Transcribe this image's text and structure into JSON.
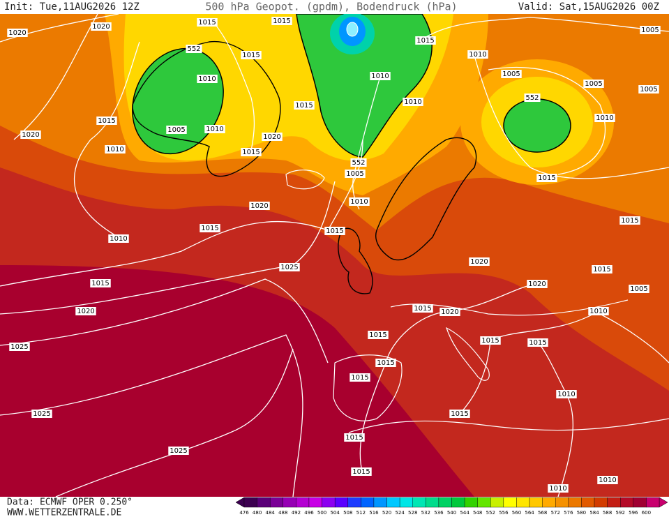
{
  "header": {
    "init": "Init: Tue,11AUG2026 12Z",
    "title": "500 hPa Geopot. (gpdm), Bodendruck (hPa)",
    "valid": "Valid: Sat,15AUG2026 00Z"
  },
  "map": {
    "isobar_labels": [
      "1020",
      "1020",
      "1015",
      "1015",
      "1015",
      "1010",
      "1005",
      "552",
      "1010",
      "1015",
      "1010",
      "1005",
      "1005",
      "1005",
      "1015",
      "1005",
      "1010",
      "1020",
      "1010",
      "1020",
      "1015",
      "1010",
      "1010",
      "552",
      "1015",
      "552",
      "1005",
      "1015",
      "1010",
      "1020",
      "1015",
      "1015",
      "1010",
      "1015",
      "1025",
      "1020",
      "1015",
      "1015",
      "1020",
      "1005",
      "1015",
      "1020",
      "1010",
      "1020",
      "1025",
      "1015",
      "1015",
      "1015",
      "1015",
      "1015",
      "1010",
      "1025",
      "1015",
      "1015",
      "1025",
      "1015",
      "1010",
      "1010"
    ]
  },
  "footer": {
    "data_source": "Data: ECMWF OPER 0.250°",
    "website": "WWW.WETTERZENTRALE.DE"
  },
  "color_scale": {
    "values": [
      476,
      480,
      484,
      488,
      492,
      496,
      500,
      504,
      508,
      512,
      516,
      520,
      524,
      528,
      532,
      536,
      540,
      544,
      548,
      552,
      556,
      560,
      564,
      568,
      572,
      576,
      580,
      584,
      588,
      592,
      596,
      600
    ],
    "colors": [
      "#3c0050",
      "#5a0078",
      "#7a0096",
      "#9600b4",
      "#b400d2",
      "#c800e6",
      "#8c00f0",
      "#5a00ff",
      "#1e3cff",
      "#0064ff",
      "#0096ff",
      "#00c8ff",
      "#00e6e6",
      "#00e6b4",
      "#00dc8c",
      "#00d264",
      "#00c83c",
      "#32d200",
      "#64e600",
      "#c8f000",
      "#ffff00",
      "#ffe600",
      "#ffc800",
      "#ffaa00",
      "#f59100",
      "#eb7800",
      "#e15a00",
      "#d23c00",
      "#c31e14",
      "#b40a28",
      "#a00032",
      "#c8006e"
    ]
  }
}
